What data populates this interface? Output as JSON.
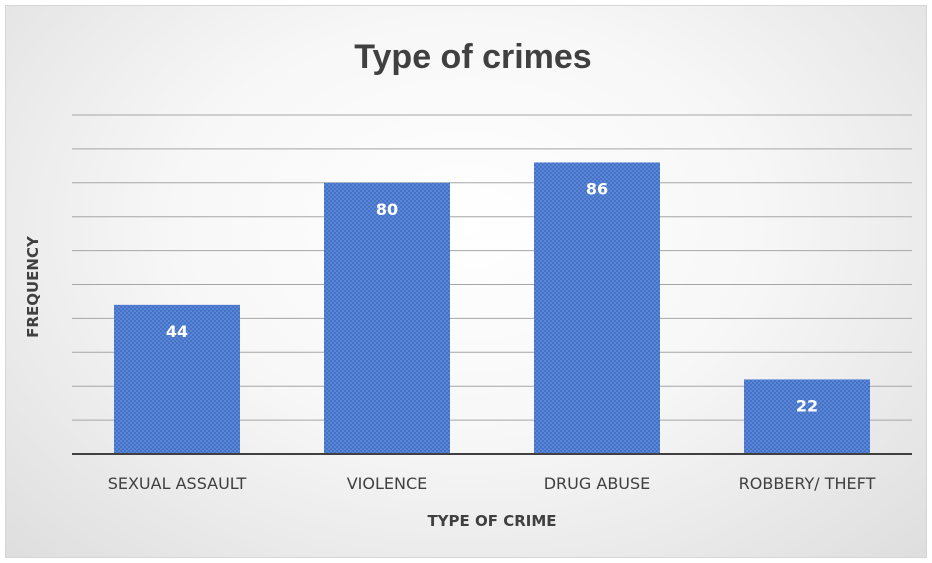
{
  "chart_data": {
    "type": "bar",
    "title": "Type of crimes",
    "xlabel": "TYPE OF CRIME",
    "ylabel": "FREQUENCY",
    "categories": [
      "SEXUAL ASSAULT",
      "VIOLENCE",
      "DRUG ABUSE",
      "ROBBERY/ THEFT"
    ],
    "values": [
      44,
      80,
      86,
      22
    ],
    "ylim": [
      0,
      100
    ],
    "grid": true,
    "legend": "none",
    "data_labels": true,
    "colors": {
      "bar": "#4472c4",
      "bar_pattern": "#5b85d6",
      "grid": "#a6a6a6",
      "axis": "#404040",
      "text": "#404040",
      "label": "#ffffff"
    }
  }
}
